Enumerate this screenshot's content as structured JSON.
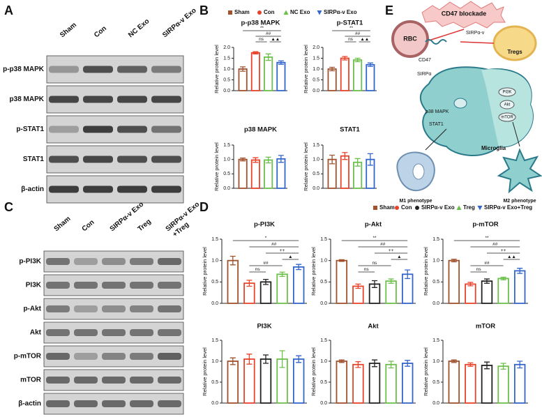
{
  "panel_labels": [
    "A",
    "B",
    "C",
    "D",
    "E"
  ],
  "blot_a": {
    "lanes": [
      "Sham",
      "Con",
      "NC Exo",
      "SIRPα-v Exo"
    ],
    "rows": [
      "p-p38 MAPK",
      "p38 MAPK",
      "p-STAT1",
      "STAT1",
      "β-actin"
    ]
  },
  "blot_c": {
    "lanes": [
      [
        "Sham"
      ],
      [
        "Con"
      ],
      [
        "SIRPα-v Exo"
      ],
      [
        "Treg"
      ],
      [
        "SIRPα-v Exo",
        "+Treg"
      ]
    ],
    "rows": [
      "p-PI3K",
      "PI3K",
      "p-Akt",
      "Akt",
      "p-mTOR",
      "mTOR",
      "β-actin"
    ]
  },
  "legend_b": {
    "names": [
      "Sham",
      "Con",
      "NC Exo",
      "SIRPα-v Exo"
    ],
    "colors": [
      "#a0522d",
      "#e8432a",
      "#6cc04a",
      "#3366cc"
    ]
  },
  "legend_d": {
    "names": [
      "Sham",
      "Con",
      "SIRPα-v Exo",
      "Treg",
      "SIRPα-v Exo+Treg"
    ],
    "colors": [
      "#a0522d",
      "#e8432a",
      "#222222",
      "#6cc04a",
      "#3366cc"
    ]
  },
  "chart_data": [
    {
      "type": "bar",
      "title": "p-p38 MAPK",
      "ylabel": "Relative protein level",
      "values": [
        1.0,
        1.75,
        1.55,
        1.3
      ],
      "errors": [
        0.1,
        0.05,
        0.15,
        0.08
      ],
      "ylim": [
        0,
        2
      ],
      "yticks": [
        {
          "value": 0,
          "label": "0.0"
        },
        {
          "value": 0.5,
          "label": "0.5"
        },
        {
          "value": 1,
          "label": "1.0"
        },
        {
          "value": 1.5,
          "label": "1.5"
        },
        {
          "value": 2,
          "label": "2.0"
        }
      ],
      "annotations": [
        "**",
        "##",
        "ns",
        "▲▲"
      ]
    },
    {
      "type": "bar",
      "title": "p-STAT1",
      "ylabel": "Relative protein level",
      "values": [
        1.0,
        1.5,
        1.42,
        1.2
      ],
      "errors": [
        0.08,
        0.08,
        0.08,
        0.08
      ],
      "ylim": [
        0,
        2
      ],
      "yticks": [
        {
          "value": 0,
          "label": "0.0"
        },
        {
          "value": 0.5,
          "label": "0.5"
        },
        {
          "value": 1,
          "label": "1.0"
        },
        {
          "value": 1.5,
          "label": "1.5"
        },
        {
          "value": 2,
          "label": "2.0"
        }
      ],
      "annotations": [
        "**",
        "##",
        "ns",
        "▲▲"
      ]
    },
    {
      "type": "bar",
      "title": "p38 MAPK",
      "ylabel": "Relative protein level",
      "values": [
        1.0,
        0.98,
        0.98,
        1.02
      ],
      "errors": [
        0.05,
        0.08,
        0.1,
        0.12
      ],
      "ylim": [
        0,
        1.5
      ],
      "yticks": [
        {
          "value": 0,
          "label": "0.0"
        },
        {
          "value": 0.5,
          "label": "0.5"
        },
        {
          "value": 1,
          "label": "1.0"
        },
        {
          "value": 1.5,
          "label": "1.5"
        }
      ],
      "annotations": []
    },
    {
      "type": "bar",
      "title": "STAT1",
      "ylabel": "Relative protein level",
      "values": [
        1.0,
        1.12,
        0.9,
        1.0
      ],
      "errors": [
        0.15,
        0.12,
        0.13,
        0.2
      ],
      "ylim": [
        0,
        1.5
      ],
      "yticks": [
        {
          "value": 0,
          "label": "0.0"
        },
        {
          "value": 0.5,
          "label": "0.5"
        },
        {
          "value": 1,
          "label": "1.0"
        },
        {
          "value": 1.5,
          "label": "1.5"
        }
      ],
      "annotations": []
    },
    {
      "type": "bar",
      "title": "p-PI3K",
      "ylabel": "Relative protein level",
      "values": [
        1.0,
        0.47,
        0.5,
        0.68,
        0.85
      ],
      "errors": [
        0.1,
        0.07,
        0.06,
        0.05,
        0.06
      ],
      "ylim": [
        0,
        1.5
      ],
      "yticks": [
        {
          "value": 0,
          "label": "0.0"
        },
        {
          "value": 0.5,
          "label": "0.5"
        },
        {
          "value": 1,
          "label": "1.0"
        },
        {
          "value": 1.5,
          "label": "1.5"
        }
      ],
      "annotations": [
        "*",
        "##",
        "++",
        "▲",
        "##",
        "ns"
      ]
    },
    {
      "type": "bar",
      "title": "p-Akt",
      "ylabel": "Relative protein level",
      "values": [
        1.0,
        0.4,
        0.45,
        0.52,
        0.68
      ],
      "errors": [
        0.02,
        0.05,
        0.08,
        0.05,
        0.1
      ],
      "ylim": [
        0,
        1.5
      ],
      "yticks": [
        {
          "value": 0,
          "label": "0.0"
        },
        {
          "value": 0.5,
          "label": "0.5"
        },
        {
          "value": 1,
          "label": "1.0"
        },
        {
          "value": 1.5,
          "label": "1.5"
        }
      ],
      "annotations": [
        "**",
        "##",
        "++",
        "▲",
        "ns",
        "ns"
      ]
    },
    {
      "type": "bar",
      "title": "p-mTOR",
      "ylabel": "Relative protein level",
      "values": [
        1.0,
        0.45,
        0.52,
        0.58,
        0.76
      ],
      "errors": [
        0.03,
        0.04,
        0.05,
        0.03,
        0.06
      ],
      "ylim": [
        0,
        1.5
      ],
      "yticks": [
        {
          "value": 0,
          "label": "0.0"
        },
        {
          "value": 0.5,
          "label": "0.5"
        },
        {
          "value": 1,
          "label": "1.0"
        },
        {
          "value": 1.5,
          "label": "1.5"
        }
      ],
      "annotations": [
        "**",
        "##",
        "++",
        "▲▲",
        "##",
        "ns"
      ]
    },
    {
      "type": "bar",
      "title": "PI3K",
      "ylabel": "Relative protein level",
      "values": [
        1.0,
        1.05,
        1.05,
        1.05,
        1.05
      ],
      "errors": [
        0.08,
        0.12,
        0.1,
        0.2,
        0.08
      ],
      "ylim": [
        0,
        1.5
      ],
      "yticks": [
        {
          "value": 0,
          "label": "0.0"
        },
        {
          "value": 0.5,
          "label": "0.5"
        },
        {
          "value": 1,
          "label": "1.0"
        },
        {
          "value": 1.5,
          "label": "1.5"
        }
      ],
      "annotations": []
    },
    {
      "type": "bar",
      "title": "Akt",
      "ylabel": "Relative protein level",
      "values": [
        1.0,
        0.92,
        0.95,
        0.92,
        0.95
      ],
      "errors": [
        0.03,
        0.07,
        0.08,
        0.08,
        0.07
      ],
      "ylim": [
        0,
        1.5
      ],
      "yticks": [
        {
          "value": 0,
          "label": "0.0"
        },
        {
          "value": 0.5,
          "label": "0.5"
        },
        {
          "value": 1,
          "label": "1.0"
        },
        {
          "value": 1.5,
          "label": "1.5"
        }
      ],
      "annotations": []
    },
    {
      "type": "bar",
      "title": "mTOR",
      "ylabel": "Relative protein level",
      "values": [
        1.0,
        0.92,
        0.9,
        0.88,
        0.92
      ],
      "errors": [
        0.03,
        0.04,
        0.08,
        0.07,
        0.08
      ],
      "ylim": [
        0,
        1.5
      ],
      "yticks": [
        {
          "value": 0,
          "label": "0.0"
        },
        {
          "value": 0.5,
          "label": "0.5"
        },
        {
          "value": 1,
          "label": "1.0"
        },
        {
          "value": 1.5,
          "label": "1.5"
        }
      ],
      "annotations": []
    }
  ],
  "diagram": {
    "blockade": "CD47 blockade",
    "rbc": "RBC",
    "sirpv": "SIRPα-v",
    "tregs": "Tregs",
    "cd47": "CD47",
    "sirpa": "SIRPα",
    "p38": "p38 MAPK",
    "stat1": "STAT1",
    "pi3k": "PI3K",
    "akt": "Akt",
    "mtor": "mTOR",
    "microglia": "Microglia",
    "m1": "M1 phenotype",
    "m2": "M2 phenotype"
  }
}
